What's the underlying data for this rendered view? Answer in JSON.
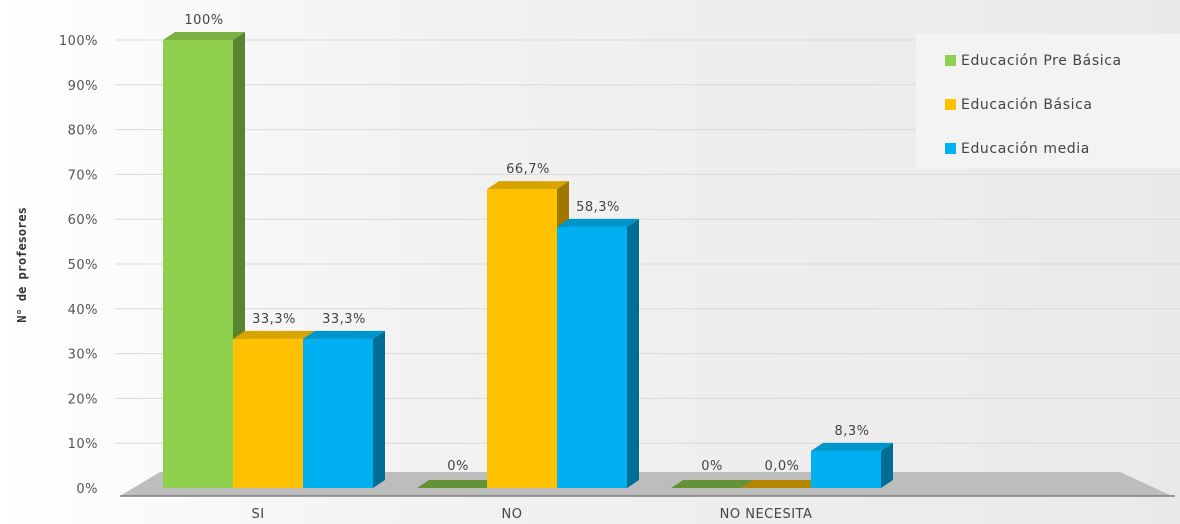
{
  "chart_data": {
    "type": "bar",
    "title": "",
    "xlabel": "",
    "ylabel": "N° de profesores",
    "ylim": [
      0,
      100
    ],
    "yticks": [
      "0%",
      "10%",
      "20%",
      "30%",
      "40%",
      "50%",
      "60%",
      "70%",
      "80%",
      "90%",
      "100%"
    ],
    "categories": [
      "SI",
      "NO",
      "NO NECESITA"
    ],
    "series": [
      {
        "name": "Educación Pre Básica",
        "color": "#8fd14f",
        "values": [
          100,
          0,
          0
        ],
        "labels": [
          "100%",
          "0%",
          "0%"
        ]
      },
      {
        "name": "Educación Básica",
        "color": "#ffc000",
        "values": [
          33.3,
          66.7,
          0
        ],
        "labels": [
          "33,3%",
          "66,7%",
          "0,0%"
        ]
      },
      {
        "name": "Educación media",
        "color": "#00b0f0",
        "values": [
          33.3,
          58.3,
          8.3
        ],
        "labels": [
          "33,3%",
          "58,3%",
          "8,3%"
        ]
      }
    ],
    "grid": true,
    "legend": "top-right",
    "style": "3d-bar"
  }
}
